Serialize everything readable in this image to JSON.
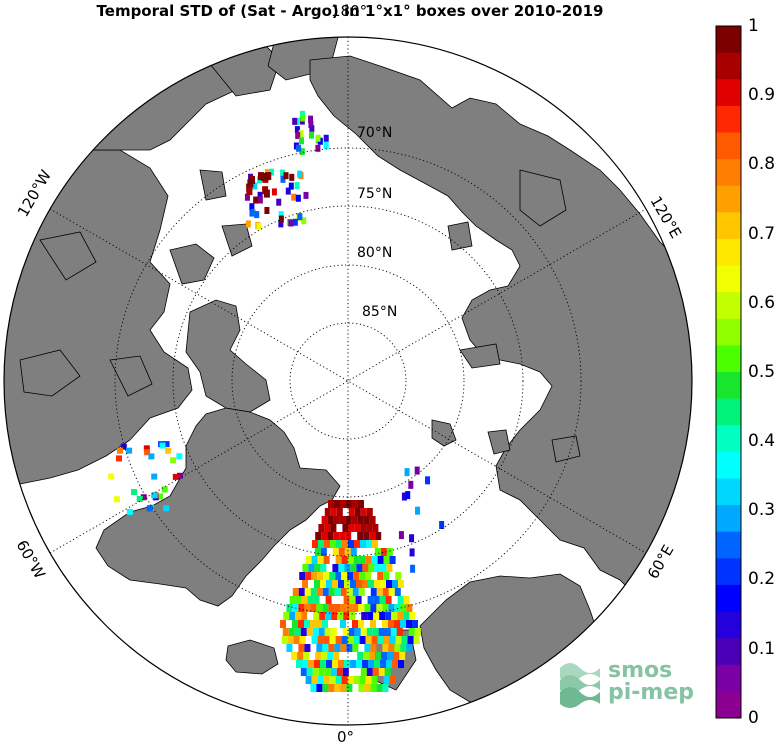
{
  "title": "Temporal STD of (Sat - Argo) in 1°x1° boxes over 2010-2019",
  "map": {
    "projection": "north polar stereographic",
    "meridian_labels": {
      "top": "180°",
      "bottom": "0°",
      "left_upper": "120°W",
      "left_lower": "60°W",
      "right_upper": "120°E",
      "right_lower": "60°E"
    },
    "parallel_labels": [
      "70°N",
      "75°N",
      "80°N",
      "85°N"
    ],
    "land_color": "#7f7f7f",
    "grid": true
  },
  "colorbar": {
    "min": 0,
    "max": 1,
    "ticks": [
      "1",
      "0.9",
      "0.8",
      "0.7",
      "0.6",
      "0.5",
      "0.4",
      "0.3",
      "0.2",
      "0.1",
      "0"
    ],
    "colors": [
      "#7b0000",
      "#a80000",
      "#e00000",
      "#ff2800",
      "#ff5a00",
      "#ff7d00",
      "#ffa000",
      "#ffc600",
      "#ffe800",
      "#f2ff00",
      "#c2ff00",
      "#8fff00",
      "#4cff00",
      "#17e62d",
      "#00f27a",
      "#00ffc0",
      "#00ffff",
      "#00d7ff",
      "#00a8ff",
      "#0064ff",
      "#0033ff",
      "#0000ff",
      "#2400dc",
      "#4b00b8",
      "#7a00a6",
      "#8b0090"
    ]
  },
  "logo": {
    "line1": "smos",
    "line2": "pi-mep"
  }
}
